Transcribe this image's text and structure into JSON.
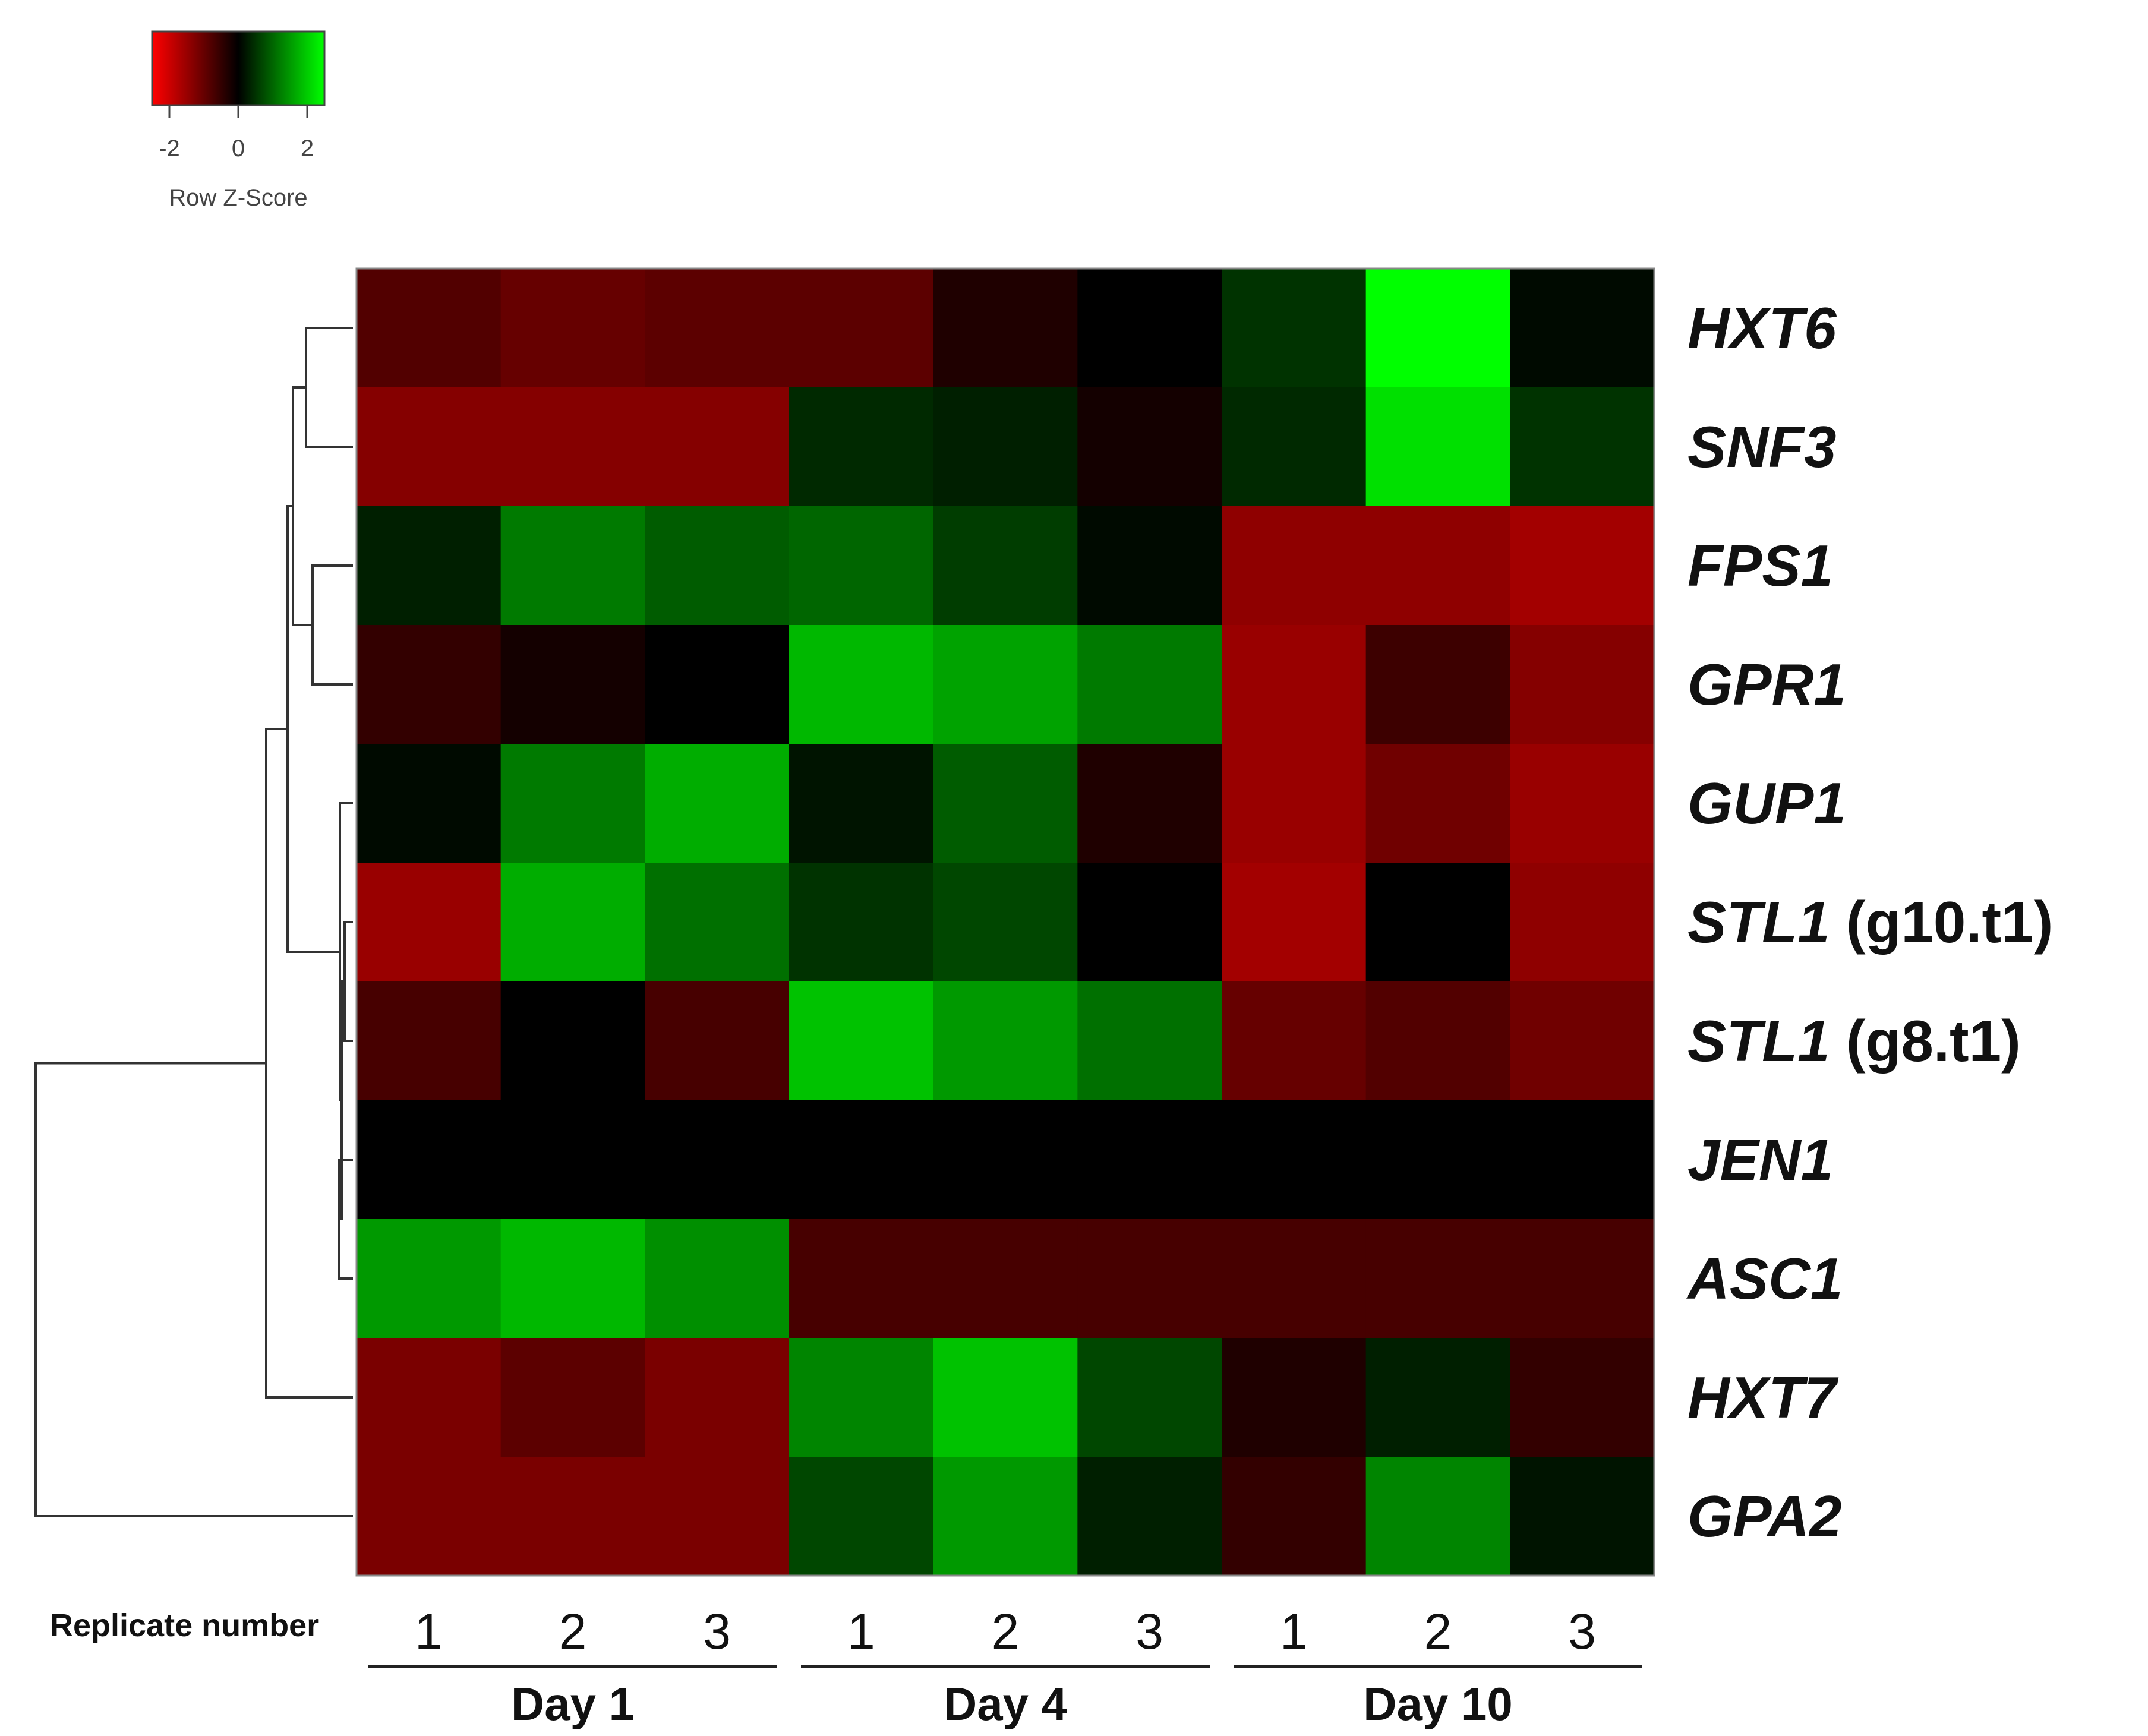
{
  "colors": {
    "low": "#ff0000",
    "mid": "#000000",
    "high": "#00ff00",
    "dendrogram": "#333333",
    "text": "#111111"
  },
  "legend": {
    "title": "Row Z-Score",
    "ticks": [
      -2,
      0,
      2
    ],
    "range": [
      -2.5,
      2.5
    ]
  },
  "chart_data": {
    "type": "heatmap",
    "x_axis_label": "Replicate number",
    "groups": [
      {
        "name": "Day 1",
        "replicates": [
          "1",
          "2",
          "3"
        ]
      },
      {
        "name": "Day 4",
        "replicates": [
          "1",
          "2",
          "3"
        ]
      },
      {
        "name": "Day 10",
        "replicates": [
          "1",
          "2",
          "3"
        ]
      }
    ],
    "rows": [
      {
        "gene": "HXT6",
        "suffix": "",
        "values": [
          -0.8,
          -1.0,
          -0.9,
          -0.9,
          -0.3,
          0.0,
          0.5,
          2.5,
          0.1
        ]
      },
      {
        "gene": "SNF3",
        "suffix": "",
        "values": [
          -1.3,
          -1.3,
          -1.3,
          0.4,
          0.3,
          -0.2,
          0.4,
          2.2,
          0.5
        ]
      },
      {
        "gene": "FPS1",
        "suffix": "",
        "values": [
          0.3,
          1.2,
          0.9,
          1.0,
          0.6,
          0.1,
          -1.4,
          -1.4,
          -1.6
        ]
      },
      {
        "gene": "GPR1",
        "suffix": "",
        "values": [
          -0.5,
          -0.2,
          0.0,
          1.8,
          1.6,
          1.2,
          -1.5,
          -0.6,
          -1.3
        ]
      },
      {
        "gene": "GUP1",
        "suffix": "",
        "values": [
          0.1,
          1.2,
          1.7,
          0.2,
          0.9,
          -0.3,
          -1.5,
          -1.1,
          -1.5
        ]
      },
      {
        "gene": "STL1",
        "suffix": " (g10.t1)",
        "values": [
          -1.5,
          1.7,
          1.1,
          0.5,
          0.7,
          0.0,
          -1.6,
          0.0,
          -1.4
        ]
      },
      {
        "gene": "STL1",
        "suffix": " (g8.t1)",
        "values": [
          -0.7,
          0.0,
          -0.7,
          1.9,
          1.5,
          1.1,
          -1.0,
          -0.8,
          -1.1
        ]
      },
      {
        "gene": "JEN1",
        "suffix": "",
        "values": [
          0.0,
          0.0,
          0.0,
          0.0,
          0.0,
          0.0,
          0.0,
          0.0,
          0.0
        ]
      },
      {
        "gene": "ASC1",
        "suffix": "",
        "values": [
          1.5,
          1.8,
          1.4,
          -0.7,
          -0.7,
          -0.7,
          -0.7,
          -0.7,
          -0.7
        ]
      },
      {
        "gene": "HXT7",
        "suffix": "",
        "values": [
          -1.2,
          -0.9,
          -1.2,
          1.3,
          1.9,
          0.7,
          -0.3,
          0.3,
          -0.5
        ]
      },
      {
        "gene": "GPA2",
        "suffix": "",
        "values": [
          -1.2,
          -1.2,
          -1.2,
          0.7,
          1.5,
          0.3,
          -0.5,
          1.3,
          0.2
        ]
      }
    ]
  }
}
